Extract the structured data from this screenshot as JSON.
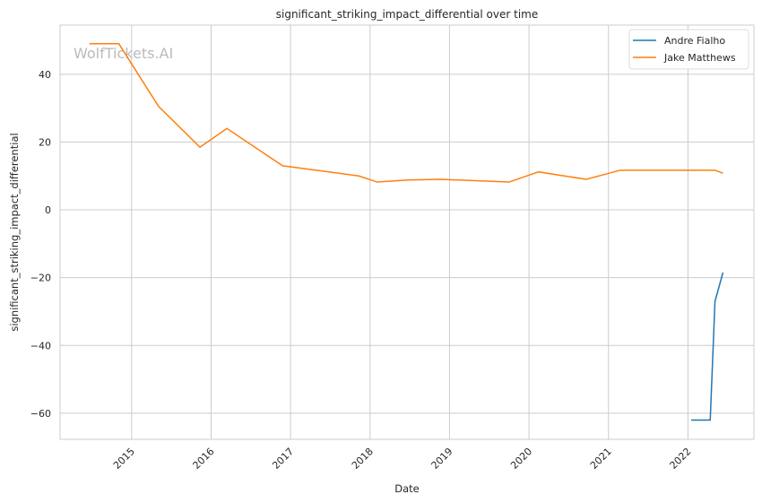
{
  "chart_data": {
    "type": "line",
    "title": "significant_striking_impact_differential over time",
    "xlabel": "Date",
    "ylabel": "significant_striking_impact_differential",
    "watermark": "WolfTickets.AI",
    "xlim": [
      2014.1,
      2022.83
    ],
    "ylim": [
      -67.7,
      54.5
    ],
    "xticks": [
      2015,
      2016,
      2017,
      2018,
      2019,
      2020,
      2021,
      2022
    ],
    "xtick_labels": [
      "2015",
      "2016",
      "2017",
      "2018",
      "2019",
      "2020",
      "2021",
      "2022"
    ],
    "yticks": [
      40,
      20,
      0,
      -20,
      -40,
      -60
    ],
    "ytick_labels": [
      "40",
      "20",
      "0",
      "−20",
      "−40",
      "−60"
    ],
    "grid": true,
    "legend_position": "top-right",
    "series": [
      {
        "name": "Andre Fialho",
        "color": "#1f77b4",
        "x": [
          2022.04,
          2022.28,
          2022.34,
          2022.44
        ],
        "y": [
          -62,
          -62,
          -27,
          -18.5
        ]
      },
      {
        "name": "Jake Matthews",
        "color": "#ff7f0e",
        "x": [
          2014.47,
          2014.84,
          2015.34,
          2015.86,
          2016.2,
          2016.9,
          2017.86,
          2018.09,
          2018.48,
          2018.89,
          2019.75,
          2020.12,
          2020.72,
          2021.15,
          2022.34,
          2022.44
        ],
        "y": [
          49,
          49,
          30.5,
          18.5,
          24,
          13,
          10,
          8.2,
          8.8,
          9.0,
          8.2,
          11.2,
          9.0,
          11.7,
          11.7,
          10.8
        ]
      }
    ]
  }
}
